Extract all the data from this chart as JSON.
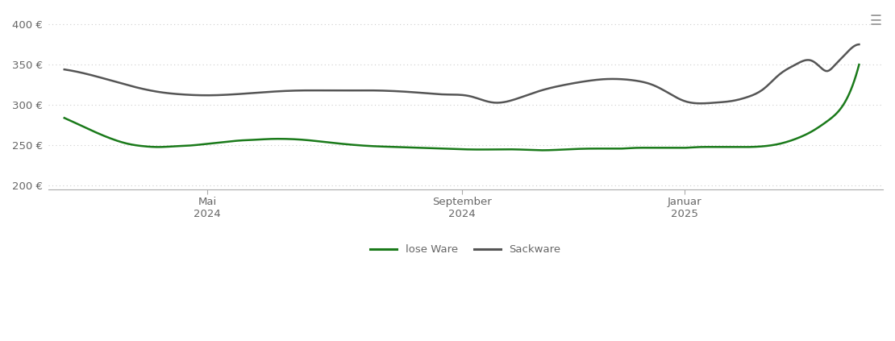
{
  "background_color": "#ffffff",
  "grid_color": "#cccccc",
  "tick_label_color": "#666666",
  "ylim": [
    195,
    415
  ],
  "yticks": [
    200,
    250,
    300,
    350,
    400
  ],
  "ytick_labels": [
    "200 €",
    "250 €",
    "300 €",
    "350 €",
    "400 €"
  ],
  "xtick_labels": [
    "Mai\n2024",
    "September\n2024",
    "Januar\n2025"
  ],
  "legend_labels": [
    "lose Ware",
    "Sackware"
  ],
  "lose_ware_color": "#1a7a1a",
  "sackware_color": "#555555",
  "linewidth": 1.8,
  "lose_ware_x": [
    0,
    2,
    4,
    6,
    8,
    10,
    12,
    14,
    16,
    18,
    20,
    22,
    24,
    26,
    28,
    30,
    33,
    36,
    39,
    42,
    45,
    48,
    51,
    54,
    57,
    60,
    63,
    66,
    68,
    70,
    72,
    74,
    76,
    78,
    80,
    82,
    84,
    86,
    88,
    90,
    92,
    94,
    96,
    98,
    100
  ],
  "lose_ware_y": [
    284,
    275,
    266,
    258,
    252,
    249,
    248,
    249,
    250,
    252,
    254,
    256,
    257,
    258,
    258,
    257,
    254,
    251,
    249,
    248,
    247,
    246,
    245,
    245,
    245,
    244,
    245,
    246,
    246,
    246,
    247,
    247,
    247,
    247,
    248,
    248,
    248,
    248,
    249,
    252,
    258,
    267,
    280,
    300,
    350
  ],
  "sackware_x": [
    0,
    3,
    6,
    9,
    12,
    15,
    18,
    21,
    24,
    27,
    30,
    33,
    36,
    39,
    42,
    45,
    48,
    51,
    54,
    57,
    60,
    63,
    66,
    68,
    70,
    72,
    74,
    76,
    78,
    80,
    82,
    84,
    86,
    88,
    90,
    92,
    94,
    95,
    96,
    97,
    98,
    99,
    100
  ],
  "sackware_y": [
    344,
    338,
    330,
    322,
    316,
    313,
    312,
    313,
    315,
    317,
    318,
    318,
    318,
    318,
    317,
    315,
    313,
    311,
    303,
    308,
    318,
    325,
    330,
    332,
    332,
    330,
    325,
    315,
    305,
    302,
    303,
    305,
    310,
    320,
    338,
    350,
    355,
    348,
    342,
    350,
    360,
    370,
    375
  ]
}
